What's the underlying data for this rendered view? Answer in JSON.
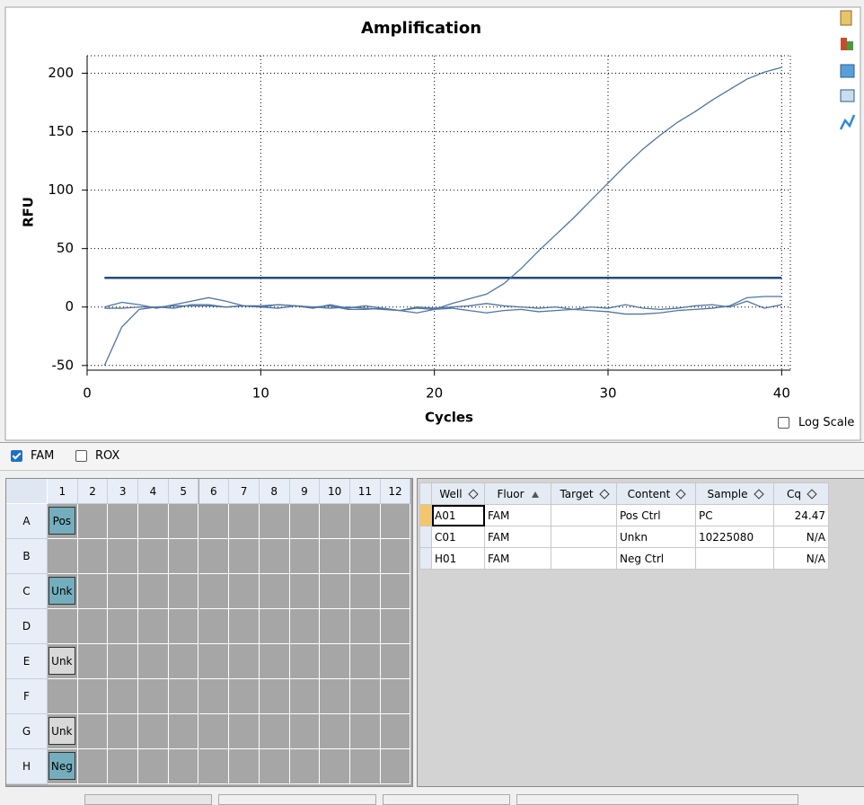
{
  "chart_data": {
    "type": "line",
    "title": "Amplification",
    "x_label": "Cycles",
    "y_label": "RFU",
    "x": [
      1,
      2,
      3,
      4,
      5,
      6,
      7,
      8,
      9,
      10,
      11,
      12,
      13,
      14,
      15,
      16,
      17,
      18,
      19,
      20,
      21,
      22,
      23,
      24,
      25,
      26,
      27,
      28,
      29,
      30,
      31,
      32,
      33,
      34,
      35,
      36,
      37,
      38,
      39,
      40
    ],
    "xlim": [
      0,
      40.5
    ],
    "ylim": [
      -54,
      215
    ],
    "xticks": [
      0,
      10,
      20,
      30,
      40
    ],
    "yticks": [
      -50,
      0,
      50,
      100,
      150,
      200
    ],
    "grid": true,
    "log_scale": false,
    "threshold": 25,
    "threshold_color": "#1f4e79",
    "series": [
      {
        "color": "#4f74a3",
        "values": [
          -50,
          -17,
          -2,
          0,
          1,
          1,
          1,
          0,
          1,
          1,
          2,
          1,
          0,
          -1,
          0,
          -1,
          -2,
          -3,
          -1,
          -2,
          3,
          7,
          11,
          20,
          33,
          48,
          62,
          76,
          91,
          106,
          121,
          135,
          147,
          158,
          167,
          177,
          186,
          195,
          201,
          205
        ]
      },
      {
        "color": "#4f74a3",
        "values": [
          0,
          4,
          2,
          -1,
          2,
          5,
          8,
          5,
          1,
          0,
          -1,
          1,
          0,
          1,
          -2,
          -2,
          -1,
          -3,
          -5,
          -2,
          -1,
          -3,
          -5,
          -3,
          -2,
          -4,
          -3,
          -2,
          -3,
          -4,
          -6,
          -6,
          -5,
          -3,
          -2,
          -1,
          1,
          8,
          9,
          9
        ]
      },
      {
        "color": "#4f74a3",
        "values": [
          -1,
          -1,
          0,
          0,
          -1,
          2,
          2,
          0,
          1,
          0,
          2,
          1,
          -1,
          2,
          -1,
          1,
          -1,
          -3,
          0,
          -1,
          0,
          1,
          3,
          1,
          0,
          -1,
          0,
          -2,
          0,
          -1,
          2,
          -1,
          -2,
          -1,
          1,
          2,
          0,
          5,
          -1,
          2
        ]
      }
    ]
  },
  "controls": {
    "log_scale": {
      "label": "Log Scale",
      "checked": false
    },
    "fluorophores": [
      {
        "label": "FAM",
        "checked": true
      },
      {
        "label": "ROX",
        "checked": false
      }
    ]
  },
  "plate": {
    "columns": [
      "1",
      "2",
      "3",
      "4",
      "5",
      "6",
      "7",
      "8",
      "9",
      "10",
      "11",
      "12"
    ],
    "rows": [
      "A",
      "B",
      "C",
      "D",
      "E",
      "F",
      "G",
      "H"
    ],
    "cells": [
      [
        {
          "label": "Pos",
          "highlighted": true
        },
        null,
        null,
        null,
        null,
        null,
        null,
        null,
        null,
        null,
        null,
        null
      ],
      [
        null,
        null,
        null,
        null,
        null,
        null,
        null,
        null,
        null,
        null,
        null,
        null
      ],
      [
        {
          "label": "Unk",
          "highlighted": true
        },
        null,
        null,
        null,
        null,
        null,
        null,
        null,
        null,
        null,
        null,
        null
      ],
      [
        null,
        null,
        null,
        null,
        null,
        null,
        null,
        null,
        null,
        null,
        null,
        null
      ],
      [
        {
          "label": "Unk",
          "highlighted": false
        },
        null,
        null,
        null,
        null,
        null,
        null,
        null,
        null,
        null,
        null,
        null
      ],
      [
        null,
        null,
        null,
        null,
        null,
        null,
        null,
        null,
        null,
        null,
        null,
        null
      ],
      [
        {
          "label": "Unk",
          "highlighted": false
        },
        null,
        null,
        null,
        null,
        null,
        null,
        null,
        null,
        null,
        null,
        null
      ],
      [
        {
          "label": "Neg",
          "highlighted": true
        },
        null,
        null,
        null,
        null,
        null,
        null,
        null,
        null,
        null,
        null,
        null
      ]
    ]
  },
  "table": {
    "columns": [
      "Well",
      "Fluor",
      "Target",
      "Content",
      "Sample",
      "Cq"
    ],
    "rows": [
      [
        "A01",
        "FAM",
        null,
        "Pos Ctrl",
        "PC",
        24.47
      ],
      [
        "C01",
        "FAM",
        null,
        "Unkn",
        "10225080",
        "N/A"
      ],
      [
        "H01",
        "FAM",
        null,
        "Neg Ctrl",
        null,
        "N/A"
      ]
    ]
  }
}
